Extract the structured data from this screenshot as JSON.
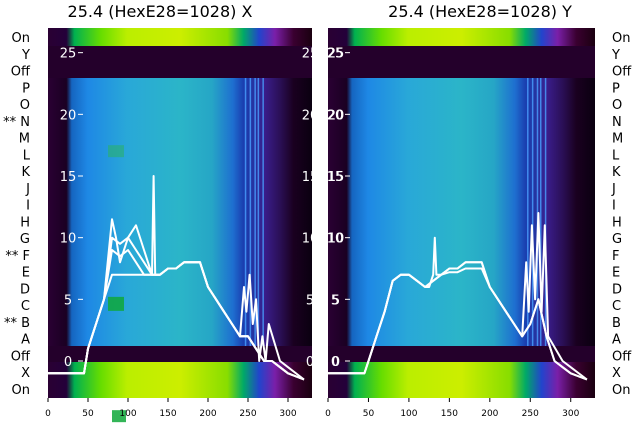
{
  "chart_data": [
    {
      "type": "heatmap",
      "title": "25.4 (HexE28=1028) X",
      "xticks": [
        0,
        50,
        100,
        150,
        200,
        250,
        300
      ],
      "xlim": [
        0,
        330
      ],
      "ylim": [
        -3,
        27
      ],
      "yticks": [
        0,
        5,
        10,
        15,
        20,
        25
      ],
      "ytick_labels": [
        "0",
        "5",
        "10",
        "15",
        "20",
        "25"
      ],
      "row_labels": [
        "On",
        "Y",
        "Off",
        "P",
        "O",
        "** N",
        "M",
        "L",
        "K",
        "J",
        "I",
        "H",
        "G",
        "** F",
        "E",
        "D",
        "C",
        "** B",
        "A",
        "Off",
        "X",
        "On"
      ],
      "series": [
        {
          "x": [
            0,
            45,
            50,
            55,
            60,
            70,
            80,
            85,
            90,
            100,
            110,
            120,
            130,
            132,
            134,
            140,
            150,
            160,
            170,
            180,
            190,
            200,
            210,
            220,
            230,
            240,
            245,
            248,
            252,
            256,
            260,
            264,
            268,
            272,
            276,
            290,
            300,
            320
          ],
          "y": [
            -1,
            -1,
            1,
            2,
            3,
            5,
            11.5,
            10,
            8,
            10,
            11,
            9,
            7,
            15,
            7,
            7,
            7.5,
            7.5,
            8,
            8,
            8,
            6,
            5,
            4,
            3,
            2,
            6,
            4,
            7,
            3,
            5,
            0,
            2,
            0,
            3,
            0,
            -0.5,
            -1.5
          ]
        },
        {
          "x": [
            0,
            45,
            50,
            55,
            60,
            70,
            80,
            90,
            100,
            110,
            120,
            130,
            140,
            150,
            160,
            170,
            180,
            190,
            200,
            210,
            220,
            230,
            240,
            250,
            260,
            270,
            280,
            290,
            300,
            320
          ],
          "y": [
            -1,
            -1,
            1,
            2,
            3,
            5,
            10,
            9.5,
            10,
            9,
            8,
            7,
            7,
            7.5,
            7.5,
            8,
            8,
            8,
            6,
            5,
            4,
            3,
            2,
            2,
            1,
            0,
            0,
            -0.5,
            -1,
            -1.5
          ]
        },
        {
          "x": [
            0,
            45,
            50,
            55,
            60,
            70,
            80,
            90,
            100,
            110,
            120,
            130,
            140,
            150,
            160,
            170,
            180,
            190,
            200,
            210,
            220,
            230,
            240,
            250,
            260,
            270,
            280,
            290,
            300,
            320
          ],
          "y": [
            -1,
            -1,
            1,
            2,
            3,
            5,
            9,
            8.5,
            9,
            8,
            7,
            7,
            7,
            7.5,
            7.5,
            8,
            8,
            8,
            6,
            5,
            4,
            3,
            2,
            2,
            1,
            0,
            0,
            -0.5,
            -1,
            -1.5
          ]
        },
        {
          "x": [
            0,
            45,
            50,
            55,
            60,
            70,
            80,
            90,
            100,
            110,
            120,
            130,
            140,
            150,
            160,
            170,
            180,
            190,
            200,
            210,
            220,
            230,
            240,
            250,
            260,
            270,
            280,
            290,
            300,
            320
          ],
          "y": [
            -1,
            -1,
            1,
            2,
            3,
            5,
            7,
            7,
            7,
            7,
            7,
            7,
            7,
            7.5,
            7.5,
            8,
            8,
            8,
            6,
            5,
            4,
            3,
            2,
            2,
            1,
            0,
            0,
            -0.5,
            -1,
            -1.5
          ]
        }
      ]
    },
    {
      "type": "heatmap",
      "title": "25.4 (HexE28=1028) Y",
      "xticks": [
        0,
        50,
        100,
        150,
        200,
        250,
        300
      ],
      "xlim": [
        0,
        330
      ],
      "ylim": [
        -3,
        27
      ],
      "yticks": [
        0,
        5,
        10,
        15,
        20,
        25
      ],
      "ytick_labels": [
        "0",
        "5",
        "10",
        "15",
        "20",
        "25"
      ],
      "row_labels": [
        "On",
        "Y",
        "Off",
        "P",
        "O",
        "N",
        "M",
        "L",
        "K",
        "J",
        "I",
        "H",
        "G",
        "F",
        "E",
        "D",
        "C",
        "B",
        "A",
        "Off",
        "X",
        "On"
      ],
      "series": [
        {
          "x": [
            0,
            45,
            50,
            55,
            60,
            70,
            80,
            90,
            100,
            110,
            120,
            125,
            130,
            132,
            134,
            140,
            150,
            160,
            170,
            180,
            190,
            200,
            210,
            220,
            230,
            240,
            245,
            248,
            252,
            256,
            260,
            264,
            268,
            272,
            290,
            300,
            320
          ],
          "y": [
            -1,
            -1,
            0,
            1,
            2,
            4,
            6.5,
            7,
            7,
            6.5,
            6,
            6,
            7,
            10,
            7,
            7,
            7.5,
            7.5,
            8,
            8,
            8,
            6,
            5,
            4,
            3,
            2,
            8,
            4,
            11,
            5,
            12,
            4,
            11,
            2,
            0,
            -0.5,
            -1.5
          ]
        },
        {
          "x": [
            0,
            45,
            50,
            55,
            60,
            70,
            80,
            90,
            100,
            110,
            120,
            130,
            140,
            150,
            160,
            170,
            180,
            190,
            200,
            210,
            220,
            230,
            240,
            250,
            260,
            270,
            280,
            290,
            300,
            320
          ],
          "y": [
            -1,
            -1,
            0,
            1,
            2,
            4,
            6.5,
            7,
            7,
            6.5,
            6,
            6.5,
            7,
            7.5,
            7.5,
            8,
            8,
            8,
            6,
            5,
            4,
            3,
            2,
            3,
            5,
            2,
            0,
            -0.5,
            -1,
            -1.5
          ]
        },
        {
          "x": [
            0,
            45,
            50,
            55,
            60,
            70,
            80,
            90,
            100,
            110,
            120,
            130,
            140,
            150,
            160,
            170,
            180,
            190,
            200,
            210,
            220,
            230,
            240,
            250,
            260,
            270,
            280,
            290,
            300,
            320
          ],
          "y": [
            -1,
            -1,
            0,
            1,
            2,
            4,
            6.5,
            7,
            7,
            6.5,
            6,
            6.5,
            7,
            7.2,
            7.2,
            7.5,
            7.5,
            7.5,
            6,
            5,
            4,
            3,
            2,
            3,
            5,
            2,
            0,
            -0.5,
            -1,
            -1.5
          ]
        }
      ]
    }
  ]
}
